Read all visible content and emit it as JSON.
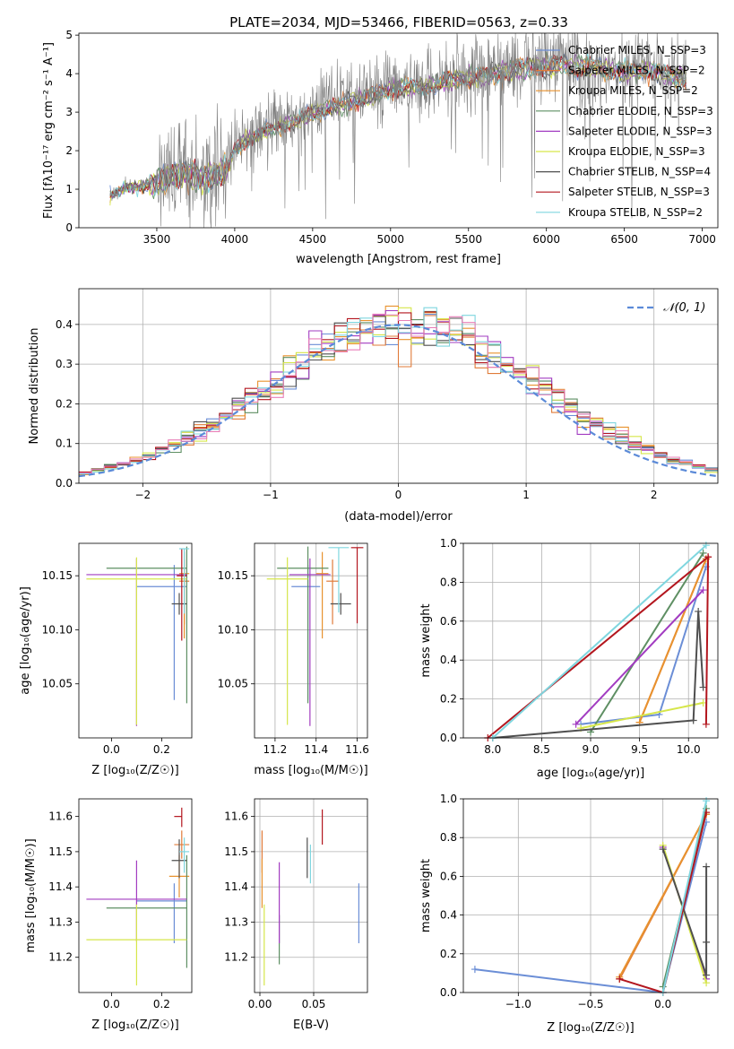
{
  "figure": {
    "title": "PLATE=2034, MJD=53466, FIBERID=0563, z=0.33"
  },
  "colors": {
    "Chabrier MILES": "#6b8ed6",
    "Salpeter MILES": "#e07b39",
    "Kroupa MILES": "#e8922f",
    "Chabrier ELODIE": "#5e8f63",
    "Salpeter ELODIE": "#a23cc1",
    "Kroupa ELODIE": "#d6e64a",
    "Chabrier STELIB": "#4f4f4f",
    "Salpeter STELIB": "#b3161e",
    "Kroupa STELIB": "#7fd6df",
    "extra_pink": "#e87fb8",
    "data_grey": "#7f7f7f",
    "normal_curve": "#5b8ad8"
  },
  "chart_data": [
    {
      "id": "spectrum",
      "type": "line",
      "xlabel": "wavelength [Angstrom, rest frame]",
      "ylabel": "Flux [fλ10⁻¹⁷ erg cm⁻² s⁻¹ A⁻¹]",
      "xlim": [
        3000,
        7100
      ],
      "ylim": [
        0,
        5.05
      ],
      "xticks": [
        3500,
        4000,
        4500,
        5000,
        5500,
        6000,
        6500,
        7000
      ],
      "yticks": [
        0,
        1,
        2,
        3,
        4,
        5
      ],
      "legend_position": "top-right",
      "legend": [
        "Chabrier MILES, N_SSP=3",
        "Salpeter MILES, N_SSP=2",
        "Kroupa MILES, N_SSP=2",
        "Chabrier ELODIE, N_SSP=3",
        "Salpeter ELODIE, N_SSP=3",
        "Kroupa ELODIE, N_SSP=3",
        "Chabrier STELIB, N_SSP=4",
        "Salpeter STELIB, N_SSP=3",
        "Kroupa STELIB, N_SSP=2"
      ],
      "continuum": [
        [
          3200,
          0.85
        ],
        [
          3300,
          1.05
        ],
        [
          3400,
          1.1
        ],
        [
          3500,
          1.2
        ],
        [
          3600,
          1.35
        ],
        [
          3700,
          1.45
        ],
        [
          3800,
          1.3
        ],
        [
          3900,
          1.45
        ],
        [
          3950,
          1.55
        ],
        [
          4000,
          2.1
        ],
        [
          4100,
          2.4
        ],
        [
          4200,
          2.6
        ],
        [
          4300,
          2.7
        ],
        [
          4400,
          2.85
        ],
        [
          4500,
          3.05
        ],
        [
          4600,
          3.2
        ],
        [
          4700,
          3.3
        ],
        [
          4800,
          3.45
        ],
        [
          4900,
          3.55
        ],
        [
          5000,
          3.7
        ],
        [
          5100,
          3.75
        ],
        [
          5200,
          3.75
        ],
        [
          5300,
          3.85
        ],
        [
          5400,
          3.95
        ],
        [
          5500,
          4.0
        ],
        [
          5600,
          4.1
        ],
        [
          5700,
          4.15
        ],
        [
          5800,
          4.25
        ],
        [
          5900,
          4.3
        ],
        [
          6000,
          4.3
        ],
        [
          6100,
          4.35
        ],
        [
          6200,
          4.3
        ],
        [
          6300,
          4.3
        ],
        [
          6400,
          4.2
        ],
        [
          6500,
          4.15
        ],
        [
          6600,
          4.2
        ],
        [
          6700,
          4.2
        ],
        [
          6800,
          4.05
        ],
        [
          6900,
          4.0
        ]
      ]
    },
    {
      "id": "residuals",
      "type": "histogram",
      "xlabel": "(data-model)/error",
      "ylabel": "Normed distribution",
      "xlim": [
        -2.5,
        2.5
      ],
      "ylim": [
        0,
        0.49
      ],
      "xticks": [
        -2,
        -1,
        0,
        1,
        2
      ],
      "yticks": [
        0.0,
        0.1,
        0.2,
        0.3,
        0.4
      ],
      "grid": true,
      "legend_position": "top-right",
      "legend": [
        "𝒩(0, 1)"
      ],
      "bin_width": 0.1
    },
    {
      "id": "age_vs_Z",
      "type": "errorbar",
      "xlabel": "Z [log₁₀(Z/Z☉)]",
      "ylabel": "age  [log₁₀(age/yr)]",
      "xlim": [
        -0.13,
        0.32
      ],
      "ylim": [
        10.0,
        10.18
      ],
      "xticks": [
        0.0,
        0.2
      ],
      "yticks": [
        10.05,
        10.1,
        10.15
      ],
      "grid": false,
      "points": [
        {
          "model": "Chabrier MILES",
          "x": 0.25,
          "xerr": [
            0.15,
            0.05
          ],
          "y": 10.14,
          "yerr": [
            0.105,
            0.02
          ]
        },
        {
          "model": "Salpeter MILES",
          "x": 0.29,
          "xerr": [
            0.02,
            0.02
          ],
          "y": 10.145,
          "yerr": [
            0.04,
            0.02
          ]
        },
        {
          "model": "Kroupa MILES",
          "x": 0.29,
          "xerr": [
            0.02,
            0.02
          ],
          "y": 10.152,
          "yerr": [
            0.06,
            0.02
          ]
        },
        {
          "model": "Chabrier ELODIE",
          "x": 0.3,
          "xerr": [
            0.32,
            0.0
          ],
          "y": 10.157,
          "yerr": [
            0.125,
            0.02
          ]
        },
        {
          "model": "Salpeter ELODIE",
          "x": 0.1,
          "xerr": [
            0.2,
            0.2
          ],
          "y": 10.151,
          "yerr": [
            0.14,
            0.015
          ]
        },
        {
          "model": "Kroupa ELODIE",
          "x": 0.1,
          "xerr": [
            0.2,
            0.2
          ],
          "y": 10.147,
          "yerr": [
            0.135,
            0.02
          ]
        },
        {
          "model": "Chabrier STELIB",
          "x": 0.27,
          "xerr": [
            0.03,
            0.03
          ],
          "y": 10.124,
          "yerr": [
            0.01,
            0.01
          ]
        },
        {
          "model": "Salpeter STELIB",
          "x": 0.28,
          "xerr": [
            0.02,
            0.02
          ],
          "y": 10.15,
          "yerr": [
            0.06,
            0.025
          ]
        },
        {
          "model": "Kroupa STELIB",
          "x": 0.29,
          "xerr": [
            0.02,
            0.02
          ],
          "y": 10.175,
          "yerr": [
            0.06,
            0.0
          ]
        }
      ]
    },
    {
      "id": "age_vs_mass",
      "type": "errorbar",
      "xlabel": "mass [log₁₀(M/M☉)]",
      "ylabel": "",
      "xlim": [
        11.1,
        11.65
      ],
      "ylim": [
        10.0,
        10.18
      ],
      "xticks": [
        11.2,
        11.4,
        11.6
      ],
      "yticks": [
        10.05,
        10.1,
        10.15
      ],
      "grid": true,
      "points": [
        {
          "model": "Chabrier MILES",
          "x": 11.36,
          "xerr": [
            0.08,
            0.06
          ],
          "y": 10.14,
          "yerr": [
            0.105,
            0.02
          ]
        },
        {
          "model": "Salpeter MILES",
          "x": 11.48,
          "xerr": [
            0.03,
            0.03
          ],
          "y": 10.145,
          "yerr": [
            0.04,
            0.02
          ]
        },
        {
          "model": "Kroupa MILES",
          "x": 11.43,
          "xerr": [
            0.03,
            0.03
          ],
          "y": 10.152,
          "yerr": [
            0.06,
            0.02
          ]
        },
        {
          "model": "Chabrier ELODIE",
          "x": 11.36,
          "xerr": [
            0.15,
            0.1
          ],
          "y": 10.157,
          "yerr": [
            0.125,
            0.02
          ]
        },
        {
          "model": "Salpeter ELODIE",
          "x": 11.37,
          "xerr": [
            0.1,
            0.1
          ],
          "y": 10.151,
          "yerr": [
            0.14,
            0.015
          ]
        },
        {
          "model": "Kroupa ELODIE",
          "x": 11.26,
          "xerr": [
            0.1,
            0.1
          ],
          "y": 10.147,
          "yerr": [
            0.135,
            0.02
          ]
        },
        {
          "model": "Chabrier STELIB",
          "x": 11.52,
          "xerr": [
            0.05,
            0.05
          ],
          "y": 10.124,
          "yerr": [
            0.01,
            0.01
          ]
        },
        {
          "model": "Salpeter STELIB",
          "x": 11.6,
          "xerr": [
            0.03,
            0.03
          ],
          "y": 10.176,
          "yerr": [
            0.07,
            0.0
          ]
        },
        {
          "model": "Kroupa STELIB",
          "x": 11.51,
          "xerr": [
            0.05,
            0.05
          ],
          "y": 10.176,
          "yerr": [
            0.06,
            0.0
          ]
        }
      ]
    },
    {
      "id": "weight_vs_age",
      "type": "line",
      "xlabel": "age  [log₁₀(age/yr)]",
      "ylabel": "mass weight",
      "xlim": [
        7.7,
        10.3
      ],
      "ylim": [
        0.0,
        1.0
      ],
      "xticks": [
        8.0,
        8.5,
        9.0,
        9.5,
        10.0
      ],
      "yticks": [
        0.0,
        0.2,
        0.4,
        0.6,
        0.8,
        1.0
      ],
      "grid": true,
      "series": [
        {
          "model": "Chabrier MILES",
          "x": [
            8.9,
            9.7,
            10.18
          ],
          "y": [
            0.07,
            0.12,
            0.88
          ]
        },
        {
          "model": "Salpeter MILES",
          "x": [
            9.5,
            10.18
          ],
          "y": [
            0.08,
            0.92
          ]
        },
        {
          "model": "Kroupa MILES",
          "x": [
            9.5,
            10.18
          ],
          "y": [
            0.08,
            0.92
          ]
        },
        {
          "model": "Chabrier ELODIE",
          "x": [
            9.0,
            10.15
          ],
          "y": [
            0.03,
            0.95
          ]
        },
        {
          "model": "Salpeter ELODIE",
          "x": [
            8.85,
            10.15
          ],
          "y": [
            0.07,
            0.76
          ]
        },
        {
          "model": "Kroupa ELODIE",
          "x": [
            8.9,
            10.15
          ],
          "y": [
            0.05,
            0.18
          ]
        },
        {
          "model": "Chabrier STELIB",
          "x": [
            8.0,
            10.05,
            10.1,
            10.15
          ],
          "y": [
            0.0,
            0.09,
            0.65,
            0.26
          ]
        },
        {
          "model": "Salpeter STELIB",
          "x": [
            7.95,
            10.2,
            10.18,
            10.2
          ],
          "y": [
            0.0,
            0.93,
            0.07,
            0.93
          ]
        },
        {
          "model": "Kroupa STELIB",
          "x": [
            8.0,
            10.18
          ],
          "y": [
            0.0,
            0.99
          ]
        }
      ]
    },
    {
      "id": "mass_vs_Z",
      "type": "errorbar",
      "xlabel": "Z [log₁₀(Z/Z☉)]",
      "ylabel": "mass [log₁₀(M/M☉)]",
      "xlim": [
        -0.13,
        0.32
      ],
      "ylim": [
        11.1,
        11.65
      ],
      "xticks": [
        0.0,
        0.2
      ],
      "yticks": [
        11.2,
        11.3,
        11.4,
        11.5,
        11.6
      ],
      "grid": false,
      "points": [
        {
          "model": "Chabrier MILES",
          "x": 0.25,
          "xerr": [
            0.15,
            0.05
          ],
          "y": 11.36,
          "yerr": [
            0.12,
            0.05
          ]
        },
        {
          "model": "Salpeter MILES",
          "x": 0.28,
          "xerr": [
            0.03,
            0.03
          ],
          "y": 11.52,
          "yerr": [
            0.04,
            0.04
          ]
        },
        {
          "model": "Kroupa MILES",
          "x": 0.27,
          "xerr": [
            0.04,
            0.04
          ],
          "y": 11.43,
          "yerr": [
            0.06,
            0.06
          ]
        },
        {
          "model": "Chabrier ELODIE",
          "x": 0.3,
          "xerr": [
            0.32,
            0.0
          ],
          "y": 11.34,
          "yerr": [
            0.17,
            0.15
          ]
        },
        {
          "model": "Salpeter ELODIE",
          "x": 0.1,
          "xerr": [
            0.2,
            0.2
          ],
          "y": 11.365,
          "yerr": [
            0.12,
            0.11
          ]
        },
        {
          "model": "Kroupa ELODIE",
          "x": 0.1,
          "xerr": [
            0.2,
            0.2
          ],
          "y": 11.25,
          "yerr": [
            0.13,
            0.1
          ]
        },
        {
          "model": "Chabrier STELIB",
          "x": 0.27,
          "xerr": [
            0.03,
            0.03
          ],
          "y": 11.475,
          "yerr": [
            0.05,
            0.06
          ]
        },
        {
          "model": "Salpeter STELIB",
          "x": 0.28,
          "xerr": [
            0.03,
            0.0
          ],
          "y": 11.6,
          "yerr": [
            0.03,
            0.025
          ]
        },
        {
          "model": "Kroupa STELIB",
          "x": 0.29,
          "xerr": [
            0.02,
            0.02
          ],
          "y": 11.5,
          "yerr": [
            0.06,
            0.04
          ]
        }
      ]
    },
    {
      "id": "mass_vs_ebv",
      "type": "errorbar",
      "xlabel": "E(B-V)",
      "ylabel": "",
      "xlim": [
        -0.005,
        0.1
      ],
      "ylim": [
        11.1,
        11.65
      ],
      "xticks": [
        0.0,
        0.05
      ],
      "yticks": [
        11.2,
        11.3,
        11.4,
        11.5,
        11.6
      ],
      "grid": true,
      "points": [
        {
          "model": "Chabrier MILES",
          "x": 0.092,
          "y": 11.33,
          "yerr": [
            0.09,
            0.08
          ]
        },
        {
          "model": "Salpeter MILES",
          "x": 0.002,
          "y": 11.5,
          "yerr": [
            0.06,
            0.06
          ]
        },
        {
          "model": "Kroupa MILES",
          "x": 0.002,
          "y": 11.42,
          "yerr": [
            0.08,
            0.06
          ]
        },
        {
          "model": "Chabrier ELODIE",
          "x": 0.018,
          "y": 11.25,
          "yerr": [
            0.07,
            0.07
          ]
        },
        {
          "model": "Salpeter ELODIE",
          "x": 0.018,
          "y": 11.36,
          "yerr": [
            0.12,
            0.11
          ]
        },
        {
          "model": "Kroupa ELODIE",
          "x": 0.004,
          "y": 11.24,
          "yerr": [
            0.12,
            0.11
          ]
        },
        {
          "model": "Chabrier STELIB",
          "x": 0.044,
          "y": 11.485,
          "yerr": [
            0.06,
            0.055
          ]
        },
        {
          "model": "Salpeter STELIB",
          "x": 0.058,
          "y": 11.57,
          "yerr": [
            0.05,
            0.05
          ]
        },
        {
          "model": "Kroupa STELIB",
          "x": 0.047,
          "y": 11.47,
          "yerr": [
            0.06,
            0.05
          ]
        }
      ]
    },
    {
      "id": "weight_vs_Z",
      "type": "line",
      "xlabel": "Z [log₁₀(Z/Z☉)]",
      "ylabel": "mass weight",
      "xlim": [
        -1.38,
        0.38
      ],
      "ylim": [
        0.0,
        1.0
      ],
      "xticks": [
        -1.0,
        -0.5,
        0.0
      ],
      "yticks": [
        0.0,
        0.2,
        0.4,
        0.6,
        0.8,
        1.0
      ],
      "grid": true,
      "series": [
        {
          "model": "Chabrier MILES",
          "x": [
            -1.3,
            0.0,
            0.3
          ],
          "y": [
            0.12,
            0.0,
            0.88
          ]
        },
        {
          "model": "Salpeter MILES",
          "x": [
            -0.3,
            0.3
          ],
          "y": [
            0.07,
            0.92
          ]
        },
        {
          "model": "Kroupa MILES",
          "x": [
            -0.3,
            0.3
          ],
          "y": [
            0.08,
            0.92
          ]
        },
        {
          "model": "Chabrier ELODIE",
          "x": [
            0.0,
            0.3
          ],
          "y": [
            0.03,
            0.95
          ]
        },
        {
          "model": "Salpeter ELODIE",
          "x": [
            0.0,
            0.3
          ],
          "y": [
            0.75,
            0.07
          ]
        },
        {
          "model": "Kroupa ELODIE",
          "x": [
            0.0,
            0.3
          ],
          "y": [
            0.76,
            0.05
          ]
        },
        {
          "model": "Chabrier STELIB",
          "x": [
            0.0,
            0.3,
            0.3,
            0.3
          ],
          "y": [
            0.74,
            0.09,
            0.65,
            0.26
          ]
        },
        {
          "model": "Salpeter STELIB",
          "x": [
            -0.3,
            0.0,
            0.3
          ],
          "y": [
            0.07,
            0.0,
            0.93
          ]
        },
        {
          "model": "Kroupa STELIB",
          "x": [
            0.0,
            0.3
          ],
          "y": [
            0.0,
            0.99
          ]
        }
      ]
    }
  ]
}
